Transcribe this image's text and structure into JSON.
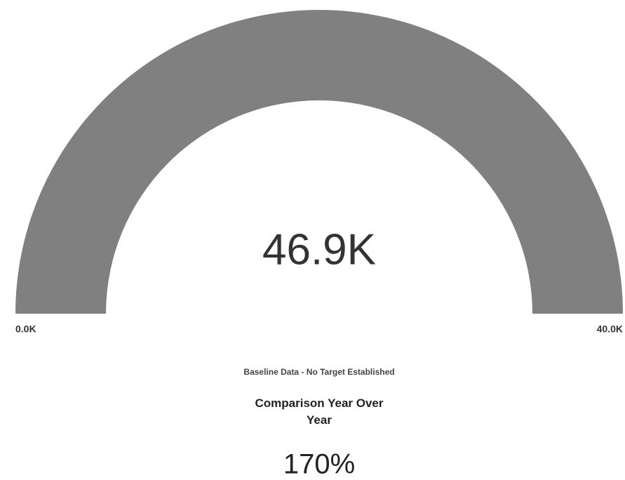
{
  "chart_data": {
    "type": "gauge",
    "value": 46900,
    "value_label": "46.9K",
    "color": "#808080",
    "track_color": "#e6e6e6",
    "ylim": [
      0,
      40000
    ],
    "yticks": [
      {
        "value": 0,
        "label": "0.0K"
      },
      {
        "value": 40000,
        "label": "40.0K"
      }
    ],
    "subtitle": "Baseline Data - No Target Established",
    "kpi": {
      "label": "Comparison Year Over Year",
      "value": 170,
      "value_label": "170%"
    }
  }
}
